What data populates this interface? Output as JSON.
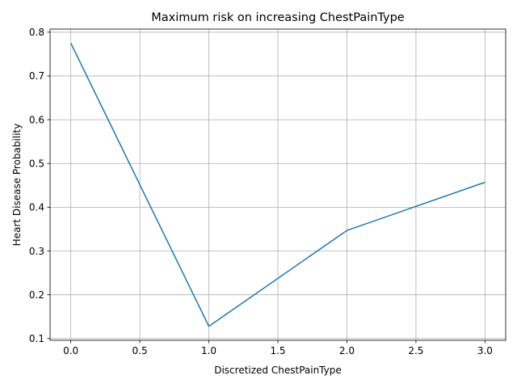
{
  "chart_data": {
    "type": "line",
    "title": "Maximum risk on increasing ChestPainType",
    "xlabel": "Discretized ChestPainType",
    "ylabel": "Heart Disease Probability",
    "x": [
      0,
      1,
      2,
      3
    ],
    "series": [
      {
        "values": [
          0.775,
          0.128,
          0.347,
          0.457
        ],
        "color": "#1f77b4"
      }
    ],
    "xlim": [
      -0.15,
      3.15
    ],
    "ylim": [
      0.096,
      0.807
    ],
    "xticks": [
      "0.0",
      "0.5",
      "1.0",
      "1.5",
      "2.0",
      "2.5",
      "3.0"
    ],
    "yticks": [
      "0.1",
      "0.2",
      "0.3",
      "0.4",
      "0.5",
      "0.6",
      "0.7",
      "0.8"
    ],
    "grid": true,
    "grid_color": "#b0b0b0",
    "line_color": "#1f77b4"
  }
}
